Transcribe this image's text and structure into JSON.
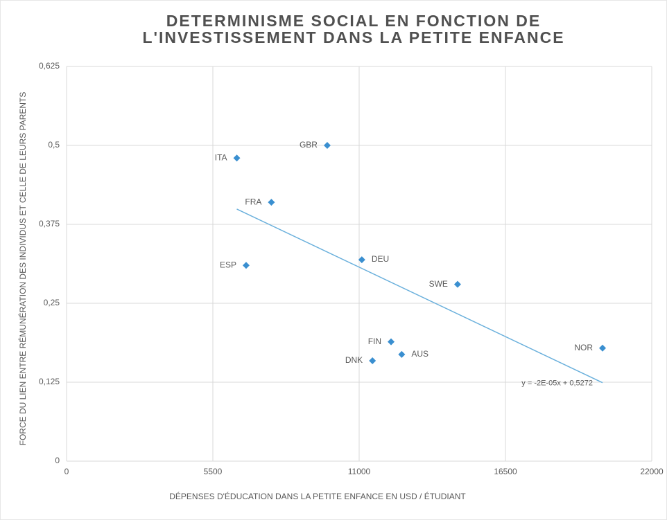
{
  "chart_data": {
    "type": "scatter",
    "title": [
      "DETERMINISME SOCIAL EN FONCTION DE",
      "L'INVESTISSEMENT DANS LA PETITE ENFANCE"
    ],
    "x_label": "DÉPENSES D'ÉDUCATION DANS LA PETITE ENFANCE EN USD / ÉTUDIANT",
    "y_label": "FORCE DU LIEN ENTRE RÉMUNÉRATION DES INDIVIDUS ET CELLE DE LEURS PARENTS",
    "labels": [
      "GBR",
      "ITA",
      "FRA",
      "ESP",
      "DEU",
      "SWE",
      "FIN",
      "AUS",
      "DNK",
      "NOR"
    ],
    "x": [
      9800,
      6400,
      7700,
      6750,
      11100,
      14700,
      12200,
      12600,
      11500,
      20150
    ],
    "values": [
      0.5,
      0.48,
      0.41,
      0.31,
      0.319,
      0.28,
      0.189,
      0.169,
      0.159,
      0.179
    ],
    "color": "#3a8fd0",
    "trendline": {
      "label": "y = -2E-05x + 0,5272",
      "slope": -2e-05,
      "intercept": 0.5272,
      "x": [
        6400,
        20150
      ],
      "color": "#6ab0dc"
    },
    "xlim": [
      0,
      22000
    ],
    "xticks": [
      0,
      5500,
      11000,
      16500,
      22000
    ],
    "ylim": [
      0,
      0.625
    ],
    "yticks": [
      0,
      {
        "value": 0.125,
        "label": "0,125"
      },
      {
        "value": 0.25,
        "label": "0,25"
      },
      {
        "value": 0.375,
        "label": "0,375"
      },
      {
        "value": 0.5,
        "label": "0,5"
      },
      {
        "value": 0.625,
        "label": "0,625"
      }
    ],
    "grid": true
  }
}
